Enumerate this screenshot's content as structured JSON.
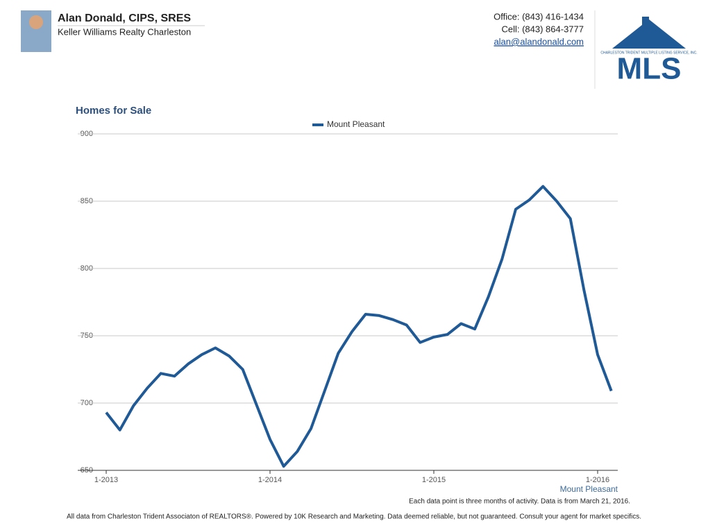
{
  "header": {
    "name": "Alan Donald, CIPS, SRES",
    "company": "Keller Williams Realty Charleston",
    "office": "Office: (843) 416-1434",
    "cell": "Cell: (843) 864-3777",
    "email": "alan@alandonald.com"
  },
  "logo": {
    "subtitle": "CHARLESTON TRIDENT MULTIPLE LISTING SERVICE, INC.",
    "text": "MLS"
  },
  "chart_data": {
    "type": "line",
    "title": "Homes for Sale",
    "categories": [
      "1-2013",
      null,
      null,
      null,
      null,
      null,
      null,
      null,
      null,
      null,
      null,
      null,
      "1-2014",
      null,
      null,
      null,
      null,
      null,
      null,
      null,
      null,
      null,
      null,
      null,
      "1-2015",
      null,
      null,
      null,
      null,
      null,
      null,
      null,
      null,
      null,
      null,
      null,
      "1-2016",
      null
    ],
    "series": [
      {
        "name": "Mount Pleasant",
        "color": "#1f5a96",
        "values": [
          693,
          680,
          698,
          711,
          722,
          720,
          729,
          736,
          741,
          735,
          725,
          699,
          673,
          653,
          664,
          681,
          709,
          737,
          753,
          766,
          765,
          762,
          758,
          745,
          749,
          751,
          759,
          755,
          779,
          807,
          844,
          851,
          861,
          850,
          837,
          784,
          736,
          709
        ]
      }
    ],
    "ylim": [
      650,
      900
    ],
    "yticks": [
      650,
      700,
      750,
      800,
      850,
      900
    ],
    "grid": true
  },
  "footer": {
    "note": "Each data point is three months of activity. Data is from March 21, 2016.",
    "disclaimer": "All data from Charleston Trident Associaton of REALTORS®. Powered by 10K Research and Marketing. Data deemed reliable, but not guaranteed. Consult your agent for market specifics."
  }
}
